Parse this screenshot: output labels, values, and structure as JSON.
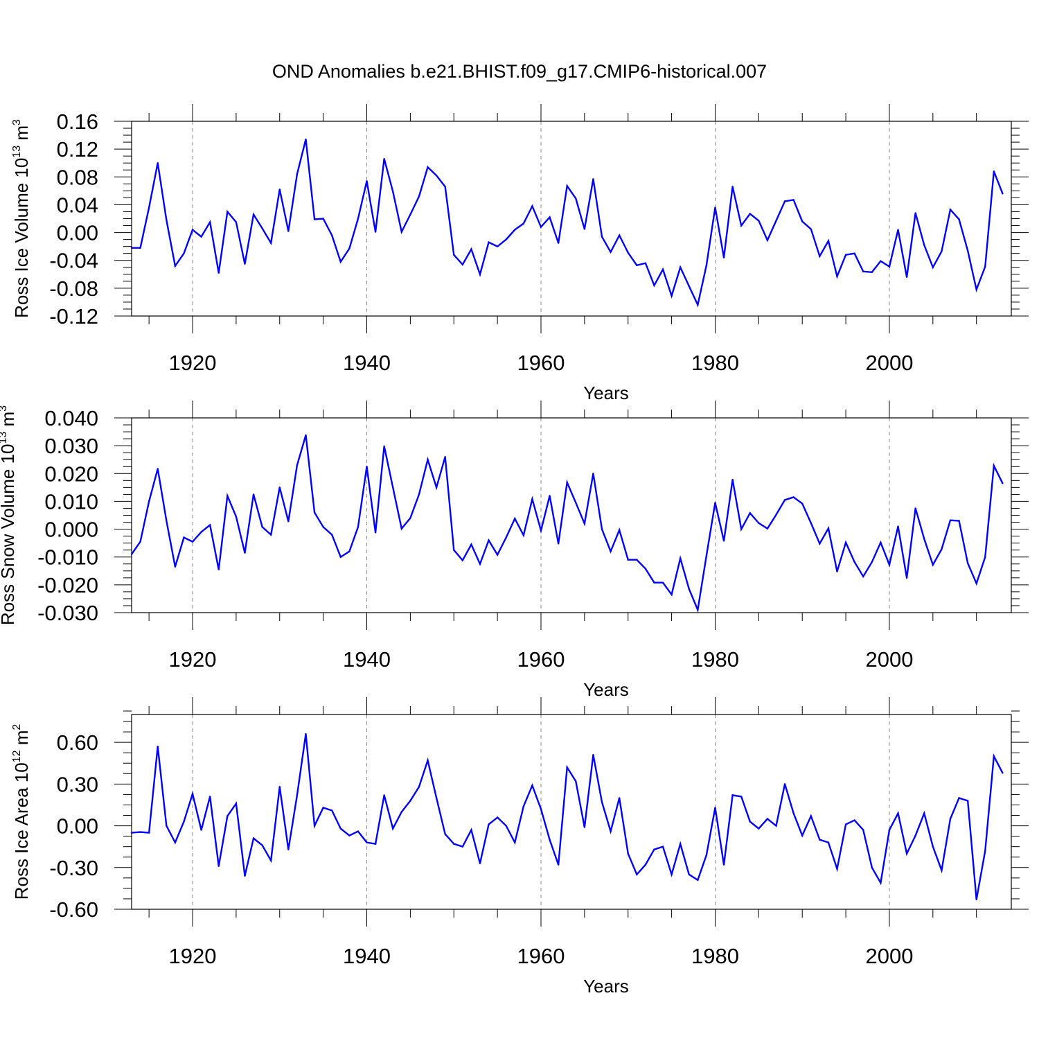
{
  "figure": {
    "title": "OND Anomalies b.e21.BHIST.f09_g17.CMIP6-historical.007",
    "line_color": "#0000ff",
    "grid_color": "#888888"
  },
  "chart_data": [
    {
      "type": "line",
      "ylabel_main": "Ross Ice Volume 10",
      "ylabel_exp": "13",
      "ylabel_unit": " m",
      "ylabel_unit_exp": "3",
      "xlabel": "Years",
      "xlim": [
        1913,
        2014
      ],
      "ylim": [
        -0.12,
        0.16
      ],
      "yticks": [
        -0.12,
        -0.08,
        -0.04,
        0.0,
        0.04,
        0.08,
        0.12,
        0.16
      ],
      "ytick_labels": [
        "-0.12",
        "-0.08",
        "-0.04",
        "0.00",
        "0.04",
        "0.08",
        "0.12",
        "0.16"
      ],
      "xticks": [
        1920,
        1940,
        1960,
        1980,
        2000
      ],
      "xtick_labels": [
        "1920",
        "1940",
        "1960",
        "1980",
        "2000"
      ],
      "grid": "dashed vertical at major x ticks",
      "series": [
        {
          "name": "Ross Ice Volume",
          "x_start": 1913,
          "values": [
            -0.022,
            -0.022,
            0.036,
            0.1,
            0.018,
            -0.048,
            -0.03,
            0.004,
            -0.006,
            0.015,
            -0.058,
            0.03,
            0.015,
            -0.045,
            0.026,
            0.006,
            -0.015,
            0.062,
            0.002,
            0.084,
            0.134,
            0.019,
            0.02,
            -0.004,
            -0.042,
            -0.023,
            0.02,
            0.074,
            0.001,
            0.106,
            0.059,
            0.001,
            0.026,
            0.052,
            0.094,
            0.082,
            0.066,
            -0.032,
            -0.046,
            -0.024,
            -0.06,
            -0.014,
            -0.02,
            -0.01,
            0.004,
            0.013,
            0.038,
            0.008,
            0.022,
            -0.015,
            0.067,
            0.049,
            0.005,
            0.077,
            -0.006,
            -0.028,
            -0.004,
            -0.029,
            -0.047,
            -0.044,
            -0.076,
            -0.053,
            -0.091,
            -0.05,
            -0.077,
            -0.104,
            -0.047,
            0.036,
            -0.036,
            0.066,
            0.01,
            0.027,
            0.017,
            -0.011,
            0.017,
            0.045,
            0.047,
            0.016,
            0.005,
            -0.034,
            -0.012,
            -0.063,
            -0.032,
            -0.03,
            -0.056,
            -0.057,
            -0.041,
            -0.049,
            0.004,
            -0.064,
            0.028,
            -0.018,
            -0.05,
            -0.027,
            0.033,
            0.019,
            -0.026,
            -0.082,
            -0.049,
            0.088,
            0.056
          ]
        }
      ]
    },
    {
      "type": "line",
      "ylabel_main": "Ross Snow Volume 10",
      "ylabel_exp": "13",
      "ylabel_unit": " m",
      "ylabel_unit_exp": "3",
      "xlabel": "Years",
      "xlim": [
        1913,
        2014
      ],
      "ylim": [
        -0.03,
        0.04
      ],
      "yticks": [
        -0.03,
        -0.02,
        -0.01,
        0.0,
        0.01,
        0.02,
        0.03,
        0.04
      ],
      "ytick_labels": [
        "-0.030",
        "-0.020",
        "-0.010",
        "0.000",
        "0.010",
        "0.020",
        "0.030",
        "0.040"
      ],
      "xticks": [
        1920,
        1940,
        1960,
        1980,
        2000
      ],
      "xtick_labels": [
        "1920",
        "1940",
        "1960",
        "1980",
        "2000"
      ],
      "grid": "dashed vertical at major x ticks",
      "series": [
        {
          "name": "Ross Snow Volume",
          "x_start": 1913,
          "values": [
            -0.009,
            -0.0045,
            0.01,
            0.0217,
            0.003,
            -0.0135,
            -0.003,
            -0.0045,
            -0.001,
            0.0015,
            -0.0145,
            0.012,
            0.0045,
            -0.0085,
            0.0125,
            0.0008,
            -0.002,
            0.015,
            0.0028,
            0.023,
            0.0338,
            0.006,
            0.0008,
            -0.002,
            -0.01,
            -0.008,
            0.0008,
            0.0225,
            -0.0012,
            0.0298,
            0.015,
            0.0002,
            0.004,
            0.0125,
            0.025,
            0.015,
            0.026,
            -0.0075,
            -0.0112,
            -0.0055,
            -0.0125,
            -0.004,
            -0.0092,
            -0.003,
            0.0038,
            -0.0022,
            0.0108,
            -0.0005,
            0.012,
            -0.0052,
            0.0168,
            0.0095,
            0.002,
            0.02,
            0.0,
            -0.008,
            -0.0003,
            -0.011,
            -0.011,
            -0.0142,
            -0.0192,
            -0.0192,
            -0.0235,
            -0.0105,
            -0.0215,
            -0.029,
            -0.0095,
            0.0095,
            -0.0042,
            0.0178,
            0.0,
            0.0058,
            0.0022,
            0.0002,
            0.0052,
            0.0105,
            0.0115,
            0.0092,
            0.0022,
            -0.0052,
            0.0003,
            -0.0152,
            -0.0048,
            -0.0118,
            -0.017,
            -0.0118,
            -0.0048,
            -0.0128,
            0.001,
            -0.0175,
            0.0075,
            -0.0035,
            -0.0128,
            -0.0072,
            0.0032,
            0.003,
            -0.0122,
            -0.0195,
            -0.01,
            0.0228,
            0.0165
          ]
        }
      ]
    },
    {
      "type": "line",
      "ylabel_main": "Ross Ice Area 10",
      "ylabel_exp": "12",
      "ylabel_unit": " m",
      "ylabel_unit_exp": "2",
      "xlabel": "Years",
      "xlim": [
        1913,
        2014
      ],
      "ylim": [
        -0.6,
        0.8
      ],
      "yticks": [
        -0.6,
        -0.3,
        0.0,
        0.3,
        0.6
      ],
      "ytick_labels": [
        "-0.60",
        "-0.30",
        "0.00",
        "0.30",
        "0.60"
      ],
      "xticks": [
        1920,
        1940,
        1960,
        1980,
        2000
      ],
      "xtick_labels": [
        "1920",
        "1940",
        "1960",
        "1980",
        "2000"
      ],
      "grid": "dashed vertical at major x ticks",
      "series": [
        {
          "name": "Ross Ice Area",
          "x_start": 1913,
          "values": [
            -0.05,
            -0.045,
            -0.05,
            0.57,
            0.0,
            -0.12,
            0.03,
            0.23,
            -0.03,
            0.21,
            -0.29,
            0.07,
            0.16,
            -0.36,
            -0.09,
            -0.14,
            -0.25,
            0.28,
            -0.17,
            0.22,
            0.66,
            0.0,
            0.13,
            0.11,
            -0.02,
            -0.07,
            -0.04,
            -0.12,
            -0.13,
            0.22,
            -0.02,
            0.1,
            0.18,
            0.28,
            0.47,
            0.2,
            -0.06,
            -0.13,
            -0.15,
            -0.03,
            -0.27,
            0.01,
            0.06,
            0.0,
            -0.12,
            0.14,
            0.29,
            0.12,
            -0.1,
            -0.28,
            0.42,
            0.32,
            -0.01,
            0.51,
            0.17,
            -0.04,
            0.2,
            -0.2,
            -0.35,
            -0.28,
            -0.17,
            -0.15,
            -0.35,
            -0.13,
            -0.35,
            -0.39,
            -0.21,
            0.13,
            -0.28,
            0.22,
            0.21,
            0.03,
            -0.02,
            0.05,
            0.0,
            0.3,
            0.09,
            -0.07,
            0.07,
            -0.1,
            -0.12,
            -0.31,
            0.01,
            0.04,
            -0.03,
            -0.3,
            -0.41,
            -0.03,
            0.09,
            -0.2,
            -0.07,
            0.09,
            -0.15,
            -0.32,
            0.05,
            0.2,
            0.18,
            -0.53,
            -0.18,
            0.5,
            0.38
          ]
        }
      ]
    }
  ]
}
